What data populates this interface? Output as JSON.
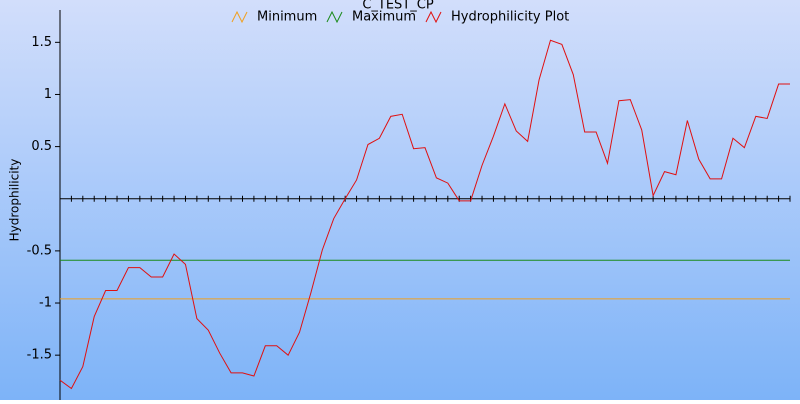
{
  "chart_data": {
    "type": "line",
    "title": "C_TEST_CP",
    "y_label": "Hydrophilicity",
    "ylim": [
      -1.93,
      1.81
    ],
    "yticks": [
      1.5,
      1,
      0.5,
      -0.5,
      -1,
      -1.5
    ],
    "categories": [
      null,
      null,
      null,
      null,
      null,
      null,
      null,
      null,
      null,
      null,
      null,
      null,
      null,
      null,
      null,
      null,
      null,
      null,
      null,
      null,
      null,
      null,
      null,
      null,
      null,
      null,
      null,
      null,
      null,
      null,
      null,
      null,
      null,
      null,
      null,
      null,
      null,
      null,
      null,
      null,
      null,
      null,
      null,
      null,
      null,
      null,
      null,
      null,
      null,
      null,
      null,
      null,
      null,
      null,
      null,
      null,
      null,
      null,
      null,
      null,
      null,
      null,
      null,
      null,
      null
    ],
    "series": [
      {
        "name": "Minimum",
        "color": "#f0a020",
        "values": [
          -0.96,
          -0.96,
          -0.96,
          -0.96,
          -0.96,
          -0.96,
          -0.96,
          -0.96,
          -0.96,
          -0.96,
          -0.96,
          -0.96,
          -0.96,
          -0.96,
          -0.96,
          -0.96,
          -0.96,
          -0.96,
          -0.96,
          -0.96,
          -0.96,
          -0.96,
          -0.96,
          -0.96,
          -0.96,
          -0.96,
          -0.96,
          -0.96,
          -0.96,
          -0.96,
          -0.96,
          -0.96,
          -0.96,
          -0.96,
          -0.96,
          -0.96,
          -0.96,
          -0.96,
          -0.96,
          -0.96,
          -0.96,
          -0.96,
          -0.96,
          -0.96,
          -0.96,
          -0.96,
          -0.96,
          -0.96,
          -0.96,
          -0.96,
          -0.96,
          -0.96,
          -0.96,
          -0.96,
          -0.96,
          -0.96,
          -0.96,
          -0.96,
          -0.96,
          -0.96,
          -0.96,
          -0.96,
          -0.96,
          -0.96,
          -0.96
        ]
      },
      {
        "name": "Maximum",
        "color": "#1a8a1a",
        "values": [
          -0.59,
          -0.59,
          -0.59,
          -0.59,
          -0.59,
          -0.59,
          -0.59,
          -0.59,
          -0.59,
          -0.59,
          -0.59,
          -0.59,
          -0.59,
          -0.59,
          -0.59,
          -0.59,
          -0.59,
          -0.59,
          -0.59,
          -0.59,
          -0.59,
          -0.59,
          -0.59,
          -0.59,
          -0.59,
          -0.59,
          -0.59,
          -0.59,
          -0.59,
          -0.59,
          -0.59,
          -0.59,
          -0.59,
          -0.59,
          -0.59,
          -0.59,
          -0.59,
          -0.59,
          -0.59,
          -0.59,
          -0.59,
          -0.59,
          -0.59,
          -0.59,
          -0.59,
          -0.59,
          -0.59,
          -0.59,
          -0.59,
          -0.59,
          -0.59,
          -0.59,
          -0.59,
          -0.59,
          -0.59,
          -0.59,
          -0.59,
          -0.59,
          -0.59,
          -0.59,
          -0.59,
          -0.59,
          -0.59,
          -0.59,
          -0.59
        ]
      },
      {
        "name": "Hydrophilicity Plot",
        "color": "#e01010",
        "values": [
          -1.74,
          -1.82,
          -1.61,
          -1.13,
          -0.88,
          -0.88,
          -0.66,
          -0.66,
          -0.75,
          -0.75,
          -0.53,
          -0.63,
          -1.15,
          -1.26,
          -1.48,
          -1.67,
          -1.67,
          -1.7,
          -1.41,
          -1.41,
          -1.5,
          -1.28,
          -0.9,
          -0.49,
          -0.19,
          0,
          0.18,
          0.52,
          0.58,
          0.79,
          0.81,
          0.48,
          0.49,
          0.2,
          0.15,
          -0.02,
          -0.02,
          0.32,
          0.6,
          0.91,
          0.65,
          0.55,
          1.14,
          1.52,
          1.48,
          1.19,
          0.64,
          0.64,
          0.34,
          0.94,
          0.95,
          0.66,
          0.03,
          0.26,
          0.23,
          0.75,
          0.38,
          0.19,
          0.19,
          0.58,
          0.49,
          0.79,
          0.77,
          1.1,
          1.1
        ]
      }
    ]
  }
}
